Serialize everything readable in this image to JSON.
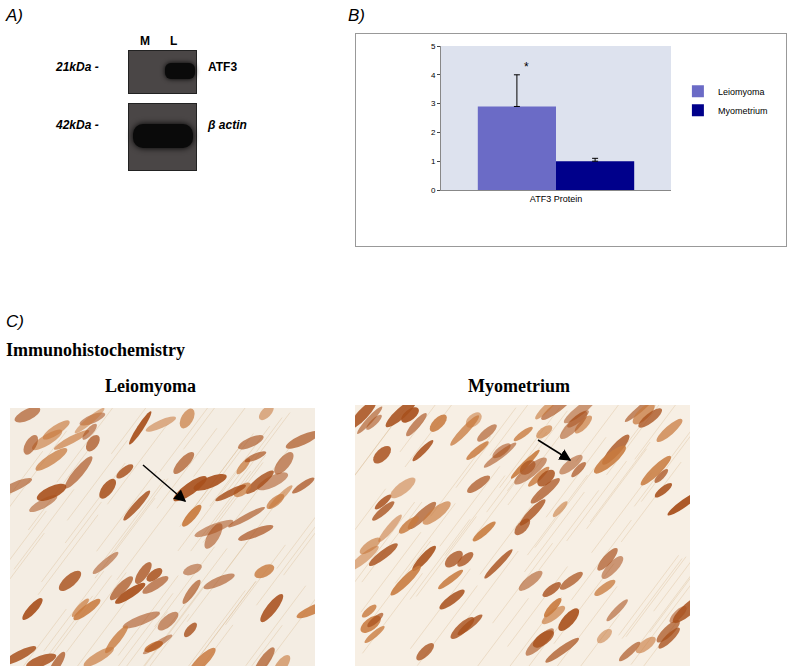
{
  "panels": {
    "A": {
      "label": "A)",
      "lanes": [
        "M",
        "L"
      ],
      "bands": [
        {
          "size": "21kDa -",
          "name": "ATF3"
        },
        {
          "size": "42kDa -",
          "name": "β actin"
        }
      ]
    },
    "B": {
      "label": "B)"
    },
    "C": {
      "label": "C)",
      "title": "Immunohistochemistry",
      "images": [
        "Leiomyoma",
        "Myometrium"
      ]
    }
  },
  "chart_data": {
    "type": "bar",
    "categories": [
      "ATF3 Protein"
    ],
    "series": [
      {
        "name": "Leiomyoma",
        "color": "#6b6bc6",
        "values": [
          2.9
        ],
        "error": [
          1.1
        ]
      },
      {
        "name": "Myometrium",
        "color": "#00008b",
        "values": [
          1.0
        ],
        "error": [
          0.1
        ]
      }
    ],
    "ylim": [
      0,
      5
    ],
    "yticks": [
      0,
      1,
      2,
      3,
      4,
      5
    ],
    "grid": false,
    "legend": "right",
    "annotations": [
      {
        "text": "*",
        "category": "ATF3 Protein",
        "series": "Leiomyoma"
      }
    ]
  }
}
